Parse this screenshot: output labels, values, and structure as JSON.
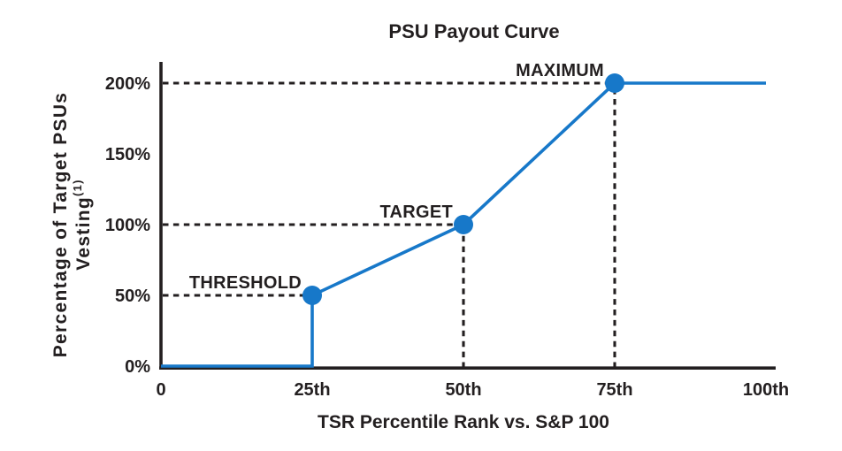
{
  "page": {
    "background": "#ffffff"
  },
  "chart_data": {
    "type": "line",
    "title": "PSU Payout Curve",
    "xlabel": "TSR Percentile Rank vs. S&P 100",
    "ylabel_line1": "Percentage of Target PSUs",
    "ylabel_line2": "Vesting",
    "ylabel_superscript": "(1)",
    "xlim": [
      0,
      100
    ],
    "ylim": [
      0,
      200
    ],
    "grid": false,
    "legend": false,
    "x_ticks": [
      {
        "value": 0,
        "label": "0"
      },
      {
        "value": 25,
        "label": "25th"
      },
      {
        "value": 50,
        "label": "50th"
      },
      {
        "value": 75,
        "label": "75th"
      },
      {
        "value": 100,
        "label": "100th"
      }
    ],
    "y_ticks": [
      {
        "value": 0,
        "label": "0%"
      },
      {
        "value": 50,
        "label": "50%"
      },
      {
        "value": 100,
        "label": "100%"
      },
      {
        "value": 150,
        "label": "150%"
      },
      {
        "value": 200,
        "label": "200%"
      }
    ],
    "line_points": [
      [
        0,
        0
      ],
      [
        25,
        0
      ],
      [
        25,
        50
      ],
      [
        50,
        100
      ],
      [
        75,
        200
      ],
      [
        100,
        200
      ]
    ],
    "key_points": [
      {
        "x": 25,
        "y": 50,
        "label": "THRESHOLD",
        "guides": [
          "h"
        ]
      },
      {
        "x": 50,
        "y": 100,
        "label": "TARGET",
        "guides": [
          "h",
          "v"
        ]
      },
      {
        "x": 75,
        "y": 200,
        "label": "MAXIMUM",
        "guides": [
          "h",
          "v"
        ]
      }
    ],
    "colors": {
      "line": "#1778c9",
      "marker": "#1778c9",
      "axis": "#231f20",
      "guide": "#231f20",
      "text": "#231f20"
    }
  }
}
